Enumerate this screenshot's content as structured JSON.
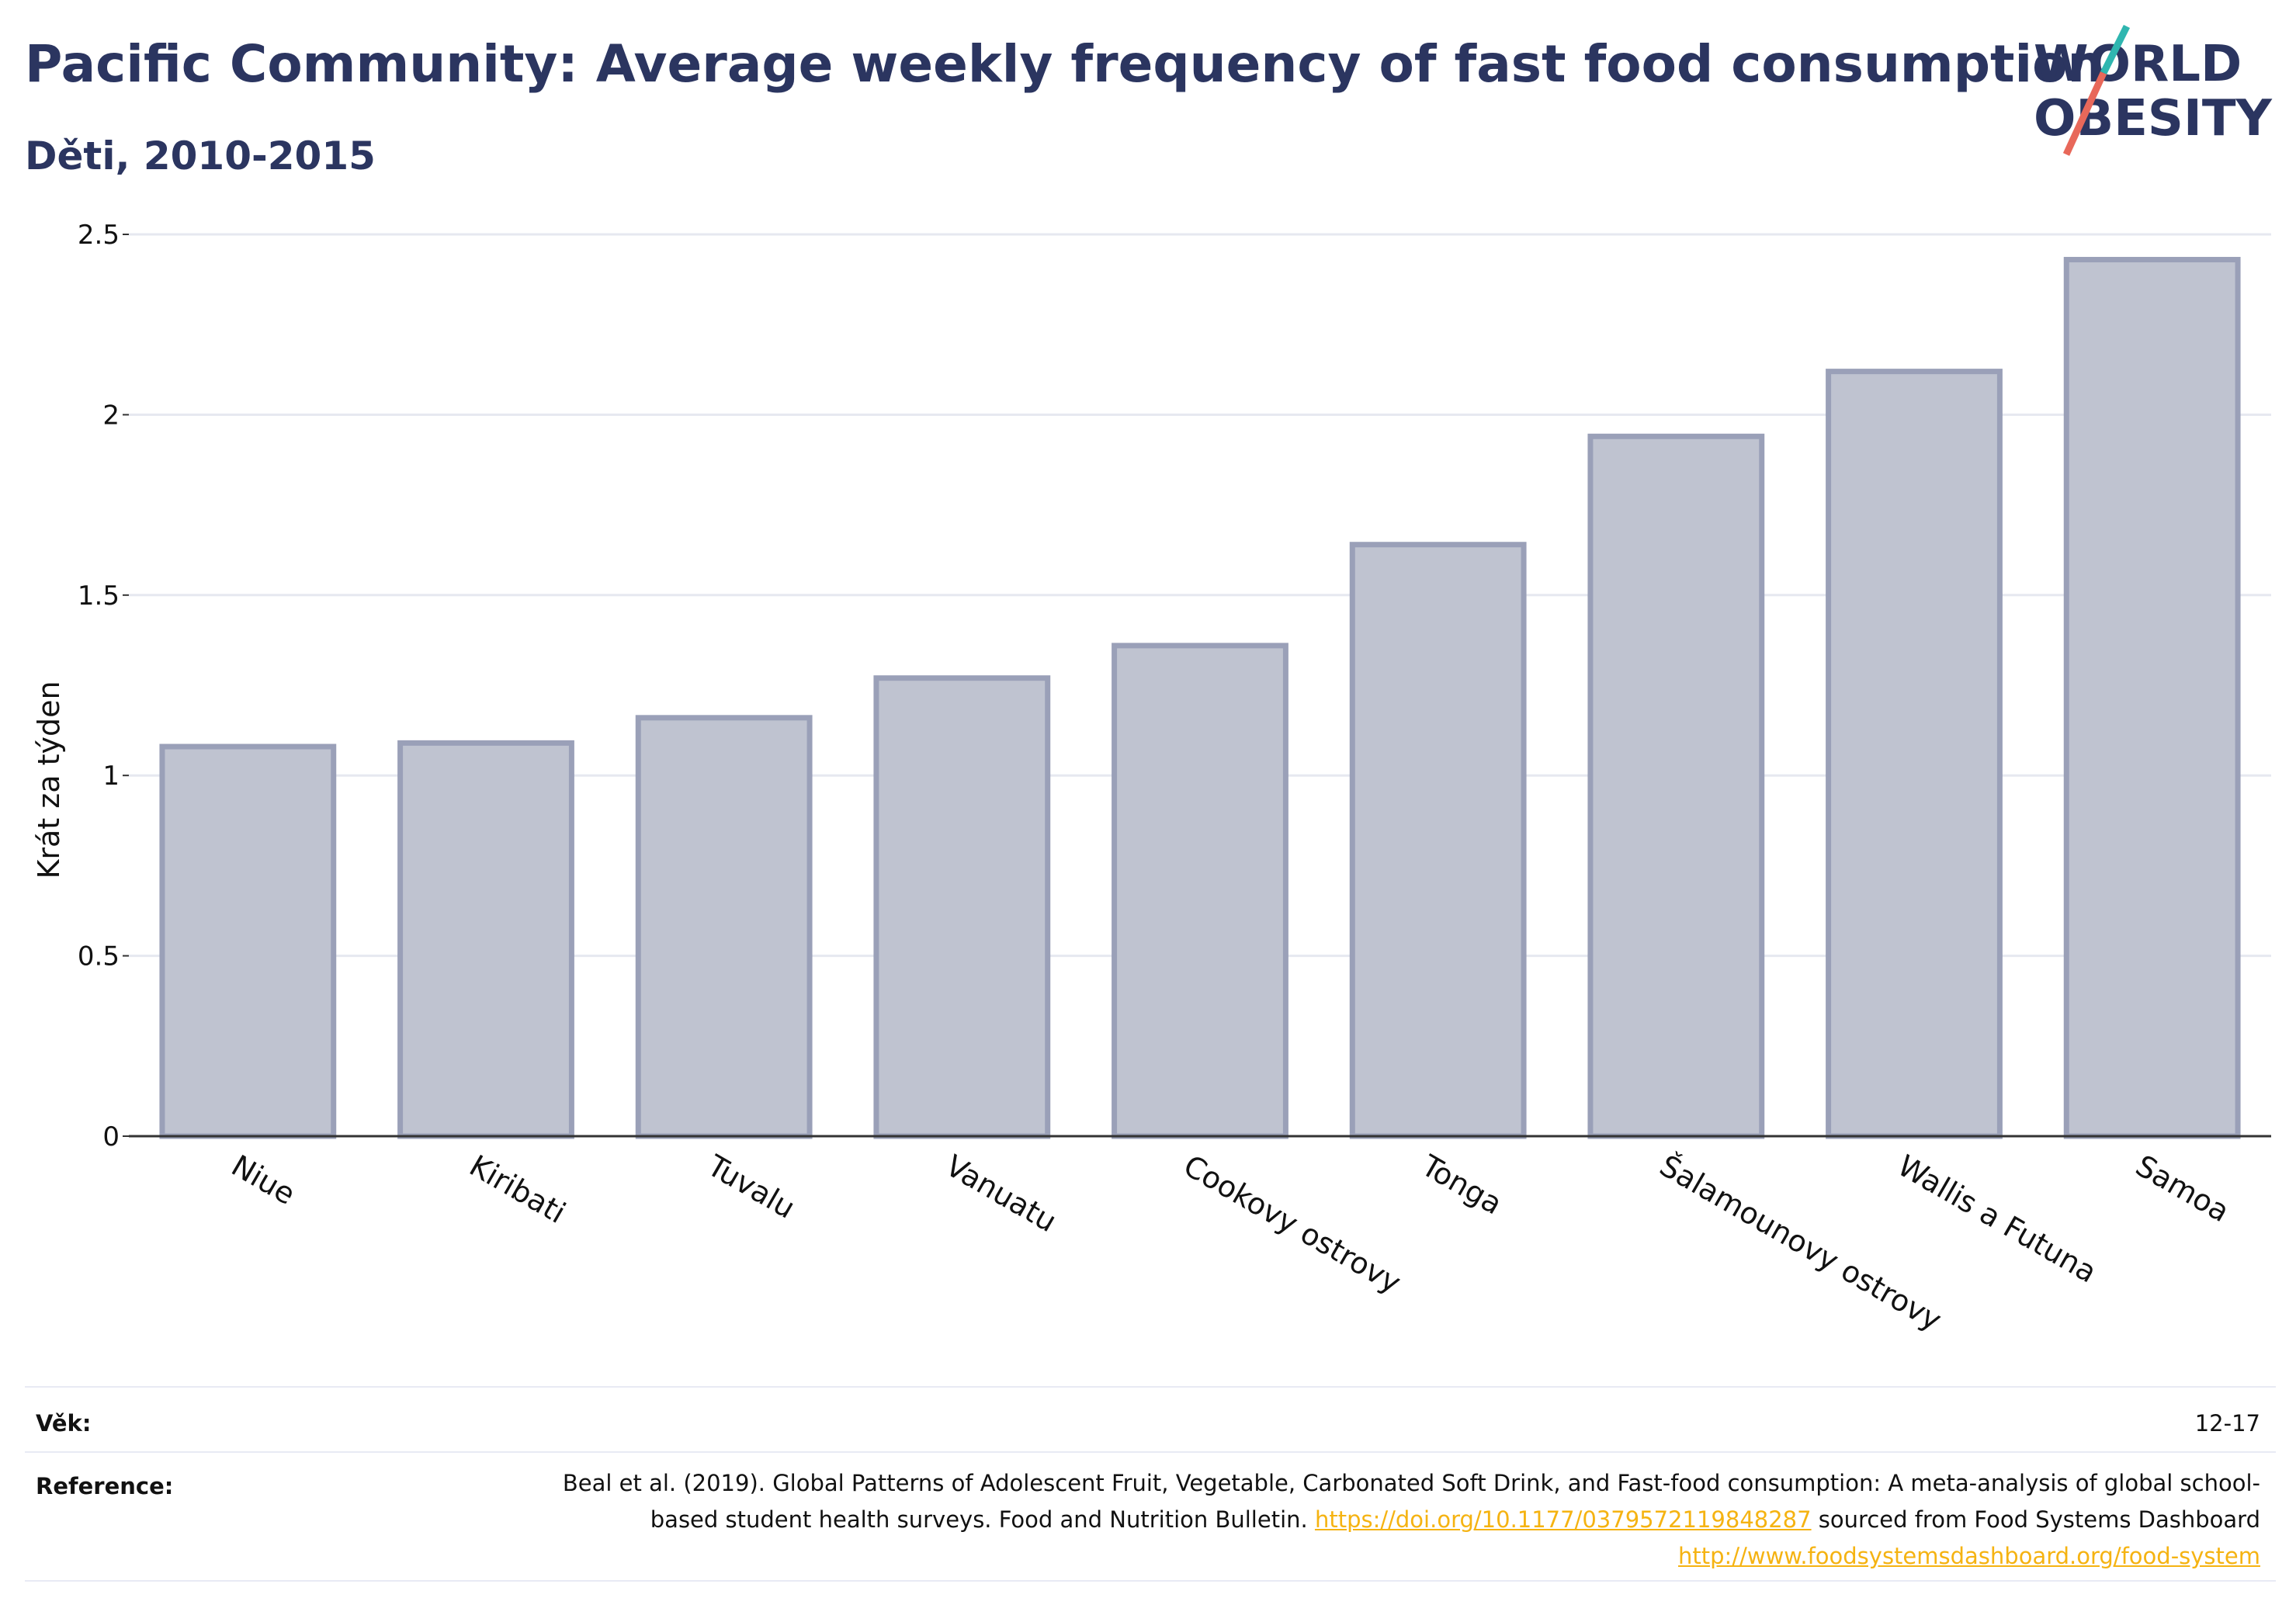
{
  "header": {
    "title": "Pacific Community: Average weekly frequency of fast food consumption",
    "subtitle": "Děti, 2010-2015"
  },
  "logo": {
    "line1": "WORLD",
    "line2": "OBESITY",
    "accent_teal": "#2fb6b0",
    "accent_coral": "#e8685a",
    "text_color": "#2b3560"
  },
  "chart_data": {
    "type": "bar",
    "categories": [
      "Niue",
      "Kiribati",
      "Tuvalu",
      "Vanuatu",
      "Cookovy ostrovy",
      "Tonga",
      "Šalamounovy ostrovy",
      "Wallis a Futuna",
      "Samoa"
    ],
    "values": [
      1.08,
      1.09,
      1.16,
      1.27,
      1.36,
      1.64,
      1.94,
      2.12,
      2.43
    ],
    "title": "Pacific Community: Average weekly frequency of fast food consumption",
    "subtitle": "Děti, 2010-2015",
    "xlabel": "",
    "ylabel": "Krát za týden",
    "ylim": [
      0,
      2.5
    ],
    "yticks": [
      0,
      0.5,
      1,
      1.5,
      2,
      2.5
    ],
    "ytick_labels": [
      "0",
      "0.5",
      "1",
      "1.5",
      "2",
      "2.5"
    ],
    "grid": true,
    "legend": "none",
    "bar_color": "#bfc3d0",
    "bar_edge_color": "#9aa0b8"
  },
  "footer": {
    "age_label": "Věk:",
    "age_value": "12-17",
    "reference_label": "Reference:",
    "reference_text_1": "Beal et al. (2019). Global Patterns of Adolescent Fruit, Vegetable, Carbonated Soft Drink, and Fast-food consumption: A meta-analysis of global school-based student health surveys. Food and Nutrition Bulletin.",
    "reference_link_1": "https://doi.org/10.1177/0379572119848287",
    "reference_text_2": "sourced from Food Systems Dashboard",
    "reference_link_2": "http://www.foodsystemsdashboard.org/food-system",
    "link_color": "#f5b312"
  }
}
